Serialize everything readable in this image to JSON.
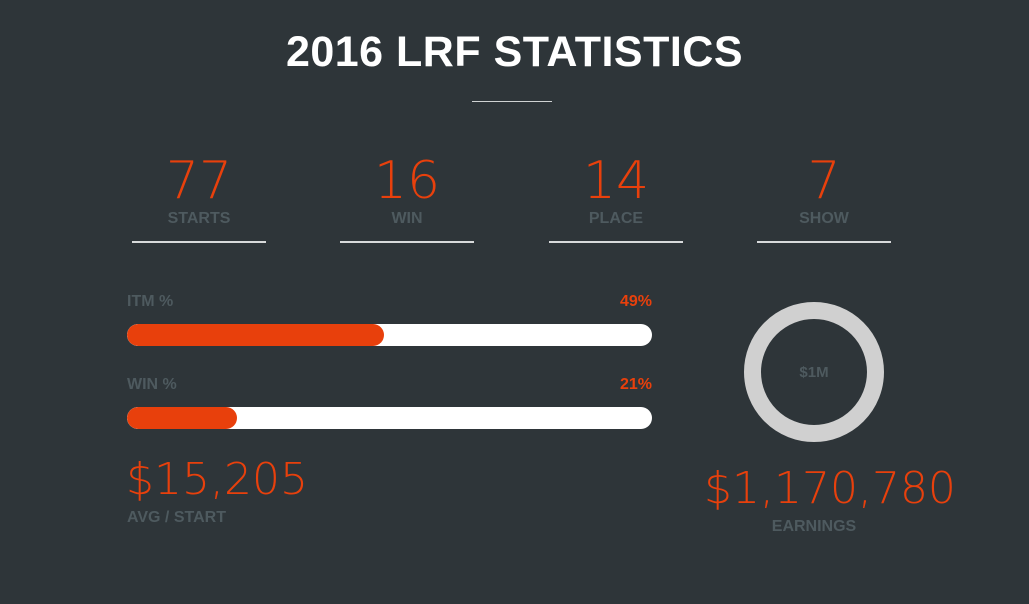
{
  "title": "2016 LRF STATISTICS",
  "stats": [
    {
      "value": "77",
      "label": "STARTS"
    },
    {
      "value": "16",
      "label": "WIN"
    },
    {
      "value": "14",
      "label": "PLACE"
    },
    {
      "value": "7",
      "label": "SHOW"
    }
  ],
  "bars": [
    {
      "label": "ITM %",
      "percent_text": "49%",
      "percent": 49
    },
    {
      "label": "WIN %",
      "percent_text": "21%",
      "percent": 21
    }
  ],
  "avg": {
    "value": "$15,205",
    "label": "AVG / START"
  },
  "earnings": {
    "ring_label": "$1M",
    "value": "$1,170,780",
    "label": "EARNINGS"
  },
  "colors": {
    "accent": "#e8400c",
    "background": "#2e3539",
    "muted": "#4e5a5f"
  }
}
